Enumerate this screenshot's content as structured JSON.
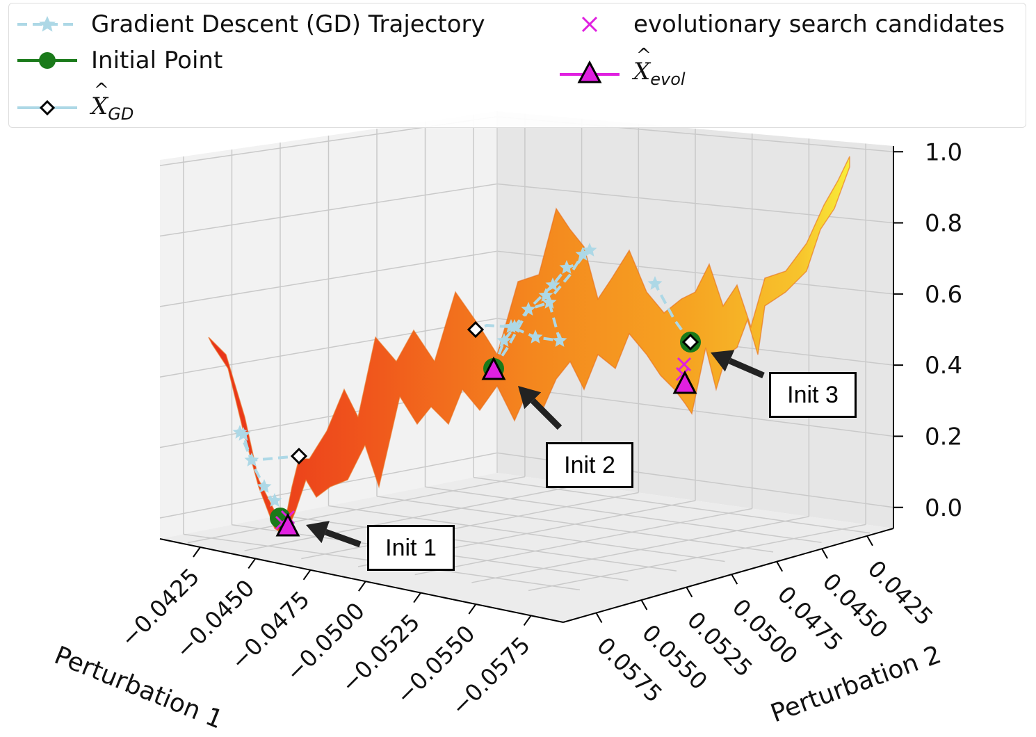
{
  "chart_data": {
    "type": "surface3d",
    "xlabel": "Perturbation 1",
    "ylabel": "Perturbation 2",
    "x_ticks": [
      "−0.0425",
      "−0.0450",
      "−0.0475",
      "−0.0500",
      "−0.0525",
      "−0.0550",
      "−0.0575"
    ],
    "y_ticks": [
      "0.0575",
      "0.0550",
      "0.0525",
      "0.0500",
      "0.0475",
      "0.0450",
      "0.0425"
    ],
    "z_ticks": [
      "0.0",
      "0.2",
      "0.4",
      "0.6",
      "0.8",
      "1.0"
    ],
    "zlim": [
      0.0,
      1.0
    ],
    "grid": true,
    "legend_position": "top",
    "legend": [
      {
        "key": "gd",
        "label": "Gradient Descent (GD) Trajectory",
        "color": "#add8e6",
        "marker": "star",
        "linestyle": "dashed"
      },
      {
        "key": "init",
        "label": "Initial Point",
        "color": "#1a7a1a",
        "marker": "circle",
        "linestyle": "solid"
      },
      {
        "key": "xgd",
        "label_main": "X",
        "label_sub": "GD",
        "color": "#add8e6",
        "marker": "diamond",
        "linestyle": "solid"
      },
      {
        "key": "evol",
        "label": "evolutionary search candidates",
        "color": "#e020e0",
        "marker": "x",
        "linestyle": "none"
      },
      {
        "key": "xevol",
        "label_main": "X",
        "label_sub": "evol",
        "color": "#e020e0",
        "marker": "triangle",
        "linestyle": "solid"
      }
    ],
    "callouts": [
      {
        "key": "init1",
        "label": "Init 1"
      },
      {
        "key": "init2",
        "label": "Init 2"
      },
      {
        "key": "init3",
        "label": "Init 3"
      }
    ]
  }
}
